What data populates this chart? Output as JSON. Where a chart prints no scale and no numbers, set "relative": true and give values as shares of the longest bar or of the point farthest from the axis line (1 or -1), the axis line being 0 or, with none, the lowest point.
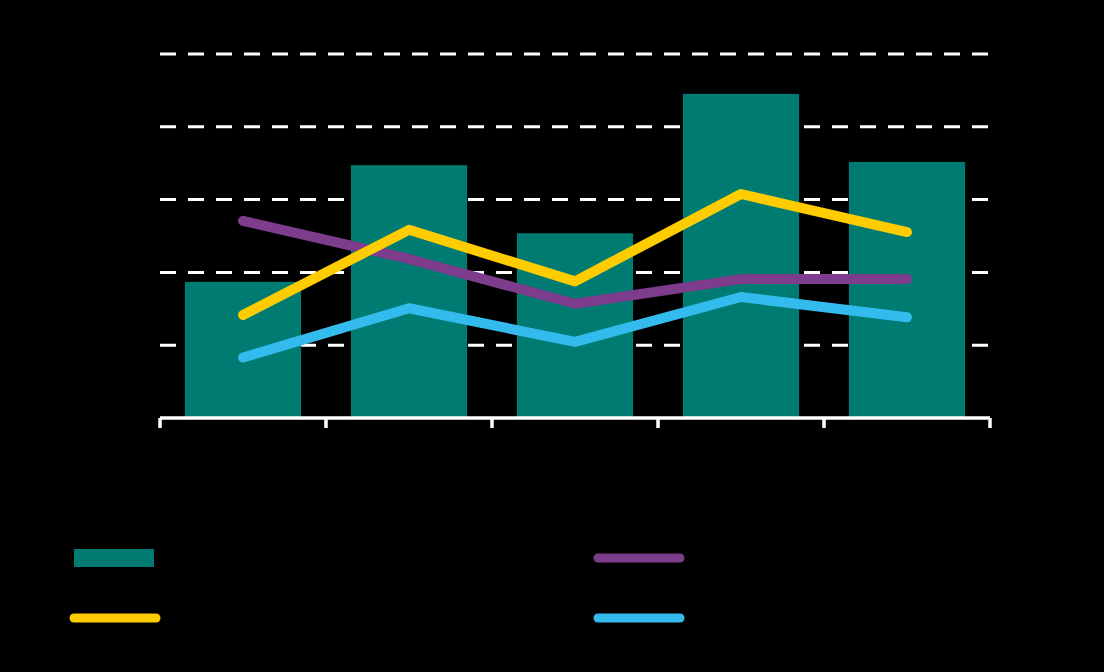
{
  "chart_data": [
    {
      "type": "bar",
      "relative": true,
      "categories": [
        null,
        null,
        null,
        null,
        null
      ],
      "grid": "y",
      "color": "#007b72",
      "values": [
        0.42,
        0.78,
        0.57,
        1,
        0.79
      ]
    },
    {
      "type": "line",
      "relative": true,
      "categories": [
        null,
        null,
        null,
        null,
        null
      ],
      "series": [
        {
          "color": "#7d3c8c",
          "values": [
            0.88,
            0.71,
            0.51,
            0.62,
            0.62
          ]
        },
        {
          "color": "#ffcc00",
          "values": [
            0.46,
            0.84,
            0.61,
            1,
            0.83
          ]
        },
        {
          "color": "#33bbee",
          "values": [
            0.27,
            0.49,
            0.34,
            0.54,
            0.45
          ]
        }
      ]
    }
  ]
}
